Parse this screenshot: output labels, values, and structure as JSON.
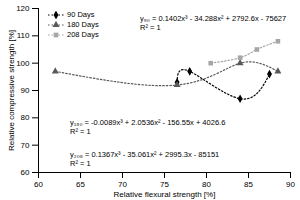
{
  "chart_data": {
    "type": "scatter",
    "x_label": "Relative flexural strength [%]",
    "y_label": "Relative compressive strength [%]",
    "xlim": [
      60,
      90
    ],
    "xticks": [
      60,
      65,
      70,
      75,
      80,
      85,
      90
    ],
    "ylim": [
      60,
      120
    ],
    "yticks": [
      60,
      70,
      80,
      90,
      100,
      110,
      120
    ],
    "grid": false,
    "legend": "top-left",
    "series": [
      {
        "name": "90 Days",
        "color": "#000000",
        "marker": "diamond",
        "line_style": "dotted",
        "x": [
          76.5,
          78,
          84,
          87.5
        ],
        "values": [
          93,
          97,
          87,
          96
        ]
      },
      {
        "name": "180 Days",
        "color": "#595959",
        "marker": "triangle",
        "line_style": "dotted",
        "x": [
          62,
          76.5,
          84,
          88.5
        ],
        "values": [
          97,
          92,
          100,
          97
        ]
      },
      {
        "name": "208 Days",
        "color": "#a6a6a6",
        "marker": "square",
        "line_style": "dotted",
        "x": [
          80.5,
          84,
          86,
          88.5
        ],
        "values": [
          100,
          102,
          105,
          108
        ]
      }
    ],
    "annotations": [
      {
        "lines": [
          "y₉₀ = 0.1402x³ - 34.288x² + 2792.6x - 75627",
          "R² = 1"
        ]
      },
      {
        "lines": [
          "y₁₈₀ = -0.0089x³ + 2.0536x² - 156.55x + 4026.6",
          "R² = 1"
        ]
      },
      {
        "lines": [
          "y₂₀₈ = 0.1367x³ - 35.061x² + 2995.3x - 85151",
          "R² = 1"
        ]
      }
    ]
  }
}
